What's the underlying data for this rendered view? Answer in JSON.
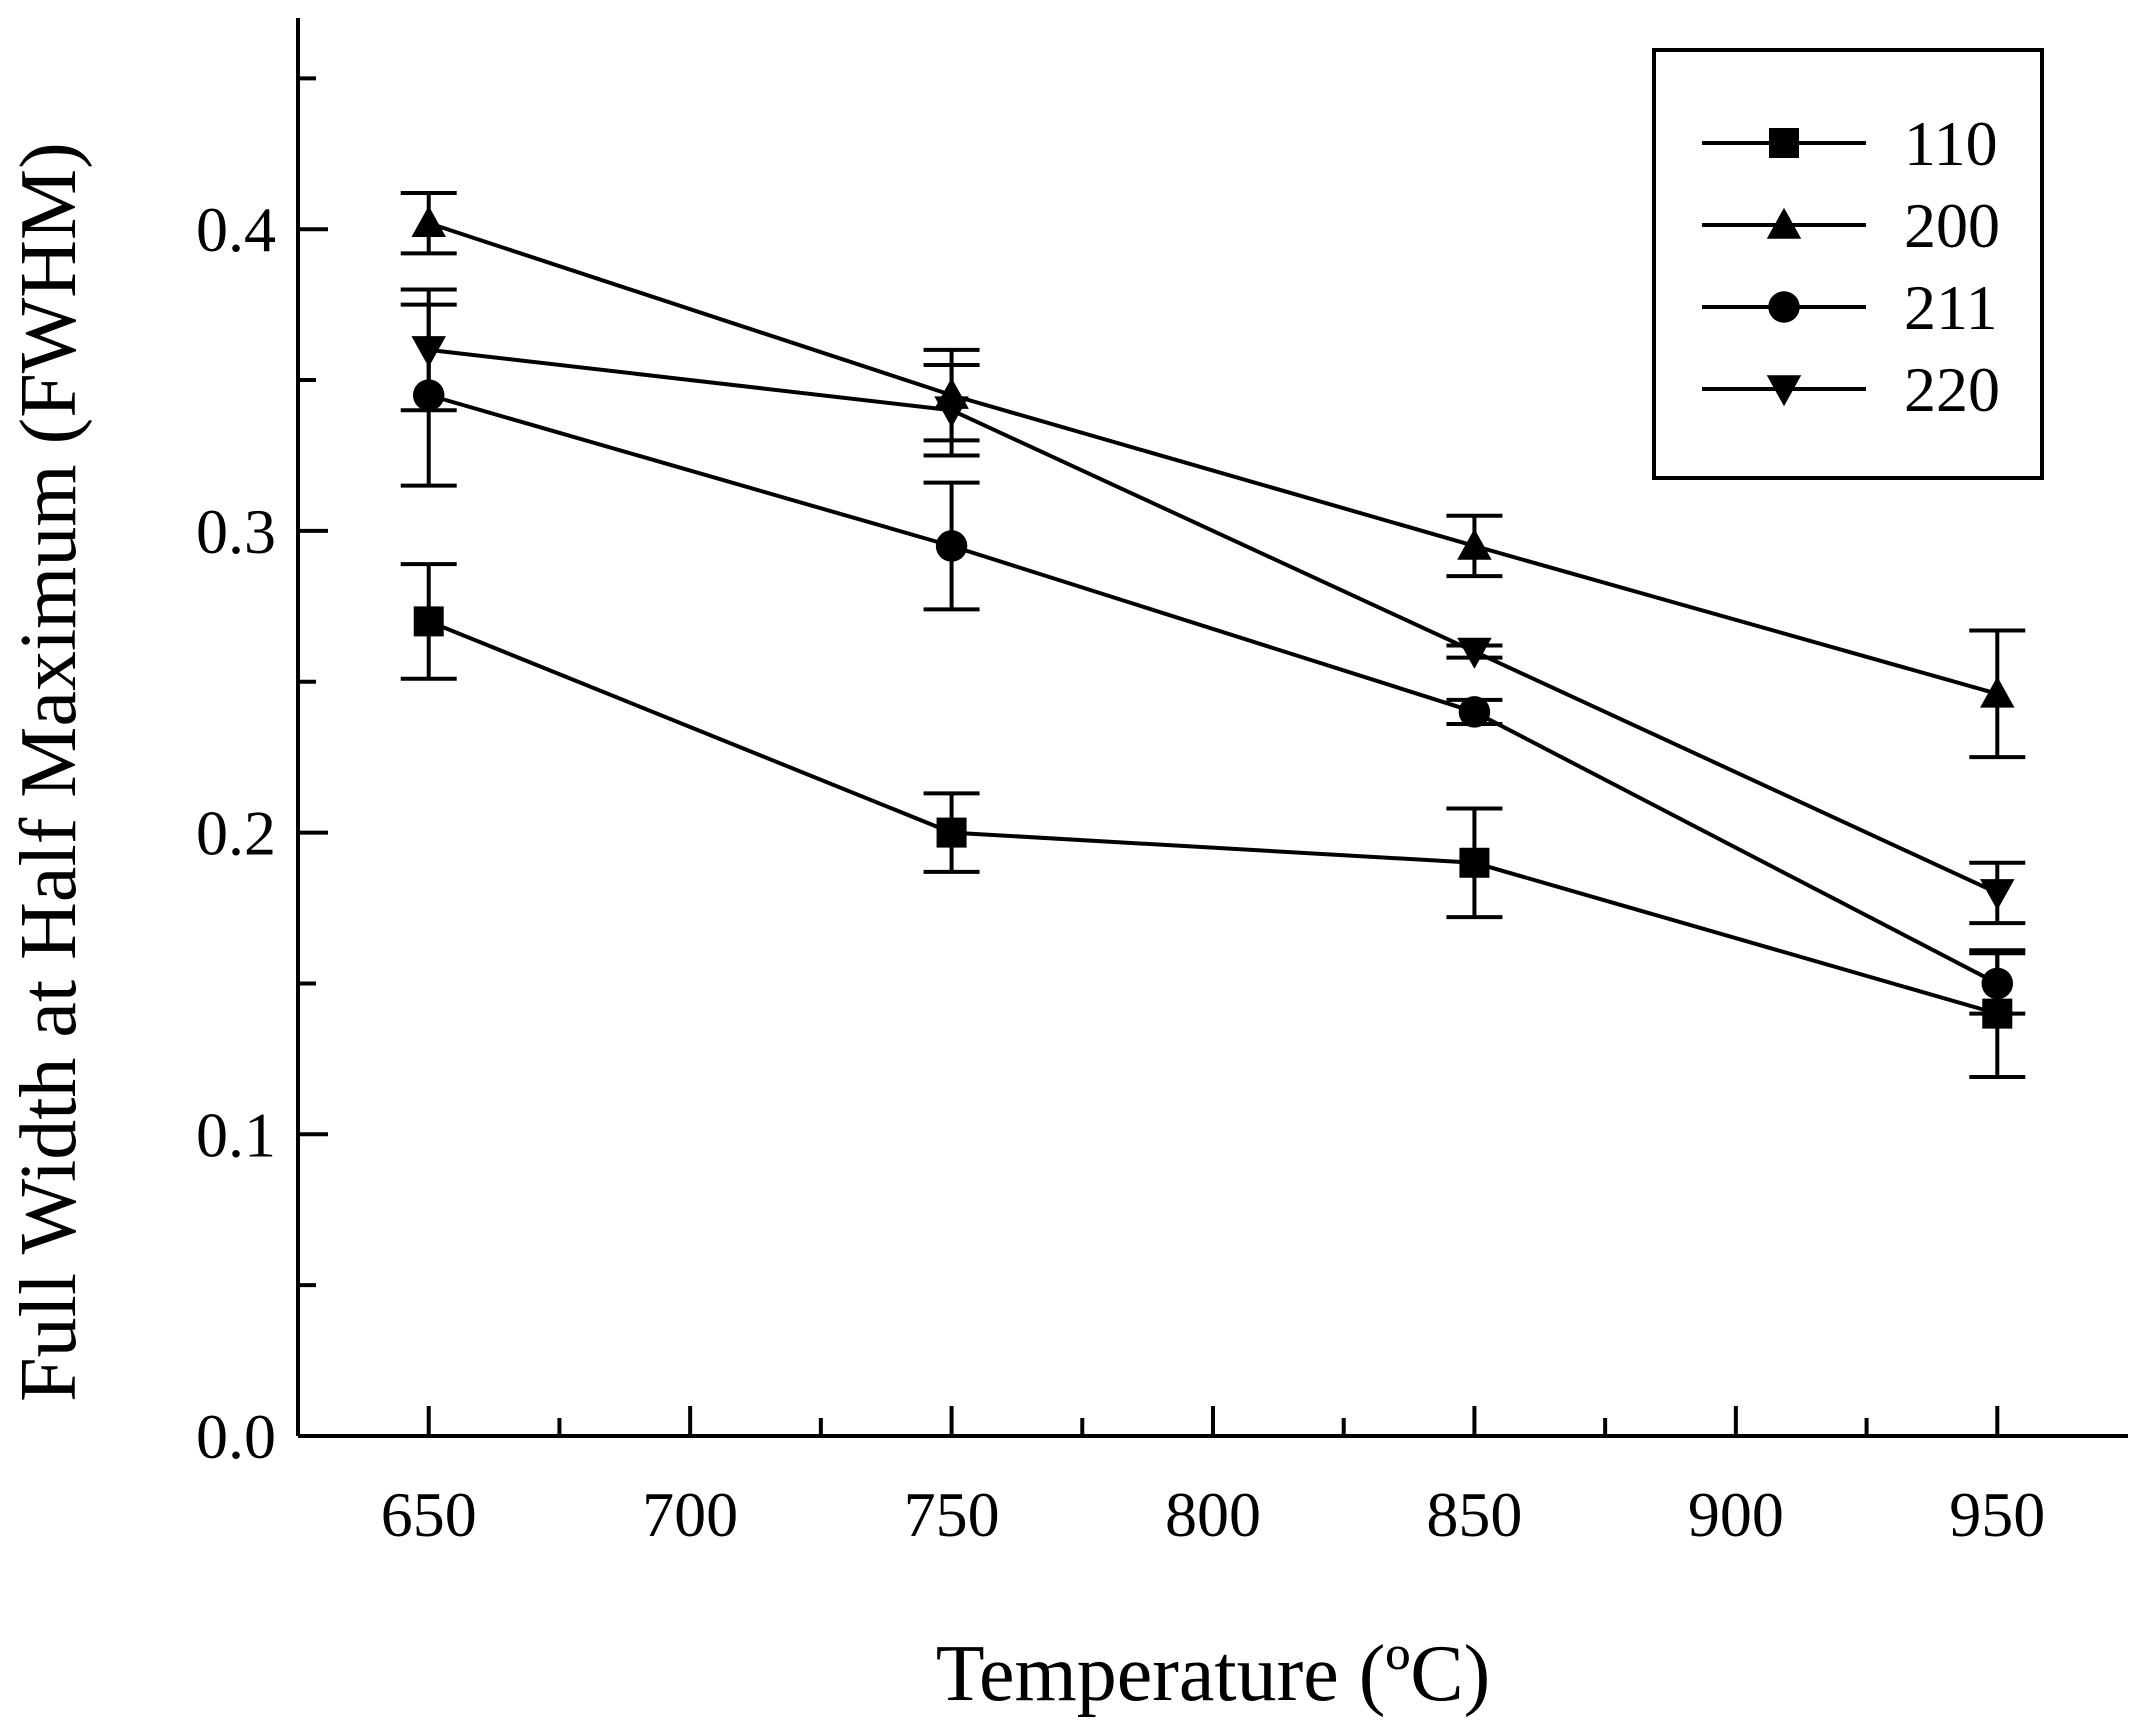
{
  "chart_data": {
    "type": "line",
    "title": "",
    "xlabel": "Temperature (ºC)",
    "ylabel": "Full Width at Half Maximum (FWHM)",
    "xlim": [
      625,
      975
    ],
    "ylim": [
      0.0,
      0.47
    ],
    "xticks": [
      650,
      700,
      750,
      800,
      850,
      900,
      950
    ],
    "xtick_labels": [
      "650",
      "700",
      "750",
      "800",
      "850",
      "900",
      "950"
    ],
    "yticks": [
      0.0,
      0.1,
      0.2,
      0.3,
      0.4
    ],
    "ytick_labels": [
      "0.0",
      "0.1",
      "0.2",
      "0.3",
      "0.4"
    ],
    "x": [
      650,
      750,
      850,
      950
    ],
    "series": [
      {
        "name": "110",
        "marker": "square",
        "values": [
          0.27,
          0.2,
          0.19,
          0.14
        ],
        "errors": [
          0.019,
          0.013,
          0.018,
          0.021
        ]
      },
      {
        "name": "200",
        "marker": "triangle-up",
        "values": [
          0.402,
          0.345,
          0.295,
          0.246
        ],
        "errors": [
          0.01,
          0.015,
          0.01,
          0.021
        ]
      },
      {
        "name": "211",
        "marker": "circle",
        "values": [
          0.345,
          0.295,
          0.24,
          0.15
        ],
        "errors": [
          0.03,
          0.021,
          0.004,
          0.01
        ]
      },
      {
        "name": "220",
        "marker": "triangle-down",
        "values": [
          0.36,
          0.34,
          0.26,
          0.18
        ],
        "errors": [
          0.02,
          0.015,
          0.002,
          0.01
        ]
      }
    ],
    "legend_position": "top-right",
    "grid": false
  }
}
